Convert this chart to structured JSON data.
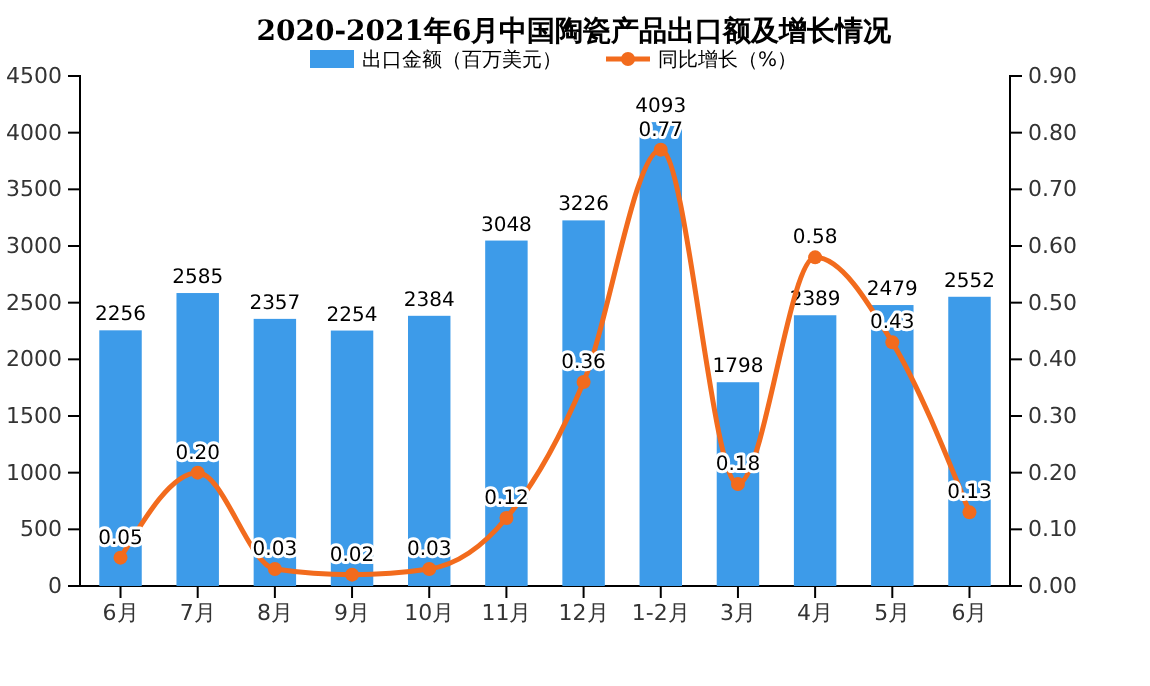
{
  "chart_data": {
    "type": "bar",
    "title": "2020-2021年6月中国陶瓷产品出口额及增长情况",
    "categories": [
      "6月",
      "7月",
      "8月",
      "9月",
      "10月",
      "11月",
      "12月",
      "1-2月",
      "3月",
      "4月",
      "5月",
      "6月"
    ],
    "series": [
      {
        "name": "出口金额（百万美元）",
        "color": "#3d9be9",
        "values": [
          2256,
          2585,
          2357,
          2254,
          2384,
          3048,
          3226,
          4093,
          1798,
          2389,
          2479,
          2552
        ],
        "value_labels": [
          "2256",
          "2585",
          "2357",
          "2254",
          "2384",
          "3048",
          "3226",
          "4093",
          "1798",
          "2389",
          "2479",
          "2552"
        ]
      },
      {
        "name": "同比增长（%）",
        "type": "line",
        "axis": "y2",
        "color": "#f26b1d",
        "marker": "circle",
        "values": [
          0.05,
          0.2,
          0.03,
          0.02,
          0.03,
          0.12,
          0.36,
          0.77,
          0.18,
          0.58,
          0.43,
          0.13
        ],
        "value_labels": [
          "0.05",
          "0.20",
          "0.03",
          "0.02",
          "0.03",
          "0.12",
          "0.36",
          "0.77",
          "0.18",
          "0.58",
          "0.43",
          "0.13"
        ]
      }
    ],
    "ylim": [
      0,
      4500
    ],
    "yticks": [
      0,
      500,
      1000,
      1500,
      2000,
      2500,
      3000,
      3500,
      4000,
      4500
    ],
    "y2lim": [
      0,
      0.9
    ],
    "y2ticks": [
      {
        "value": 0,
        "label": "0.00"
      },
      {
        "value": 0.1,
        "label": "0.10"
      },
      {
        "value": 0.2,
        "label": "0.20"
      },
      {
        "value": 0.3,
        "label": "0.30"
      },
      {
        "value": 0.4,
        "label": "0.40"
      },
      {
        "value": 0.5,
        "label": "0.50"
      },
      {
        "value": 0.6,
        "label": "0.60"
      },
      {
        "value": 0.7,
        "label": "0.70"
      },
      {
        "value": 0.8,
        "label": "0.80"
      },
      {
        "value": 0.9,
        "label": "0.90"
      }
    ],
    "legend": "top",
    "grid": false
  }
}
